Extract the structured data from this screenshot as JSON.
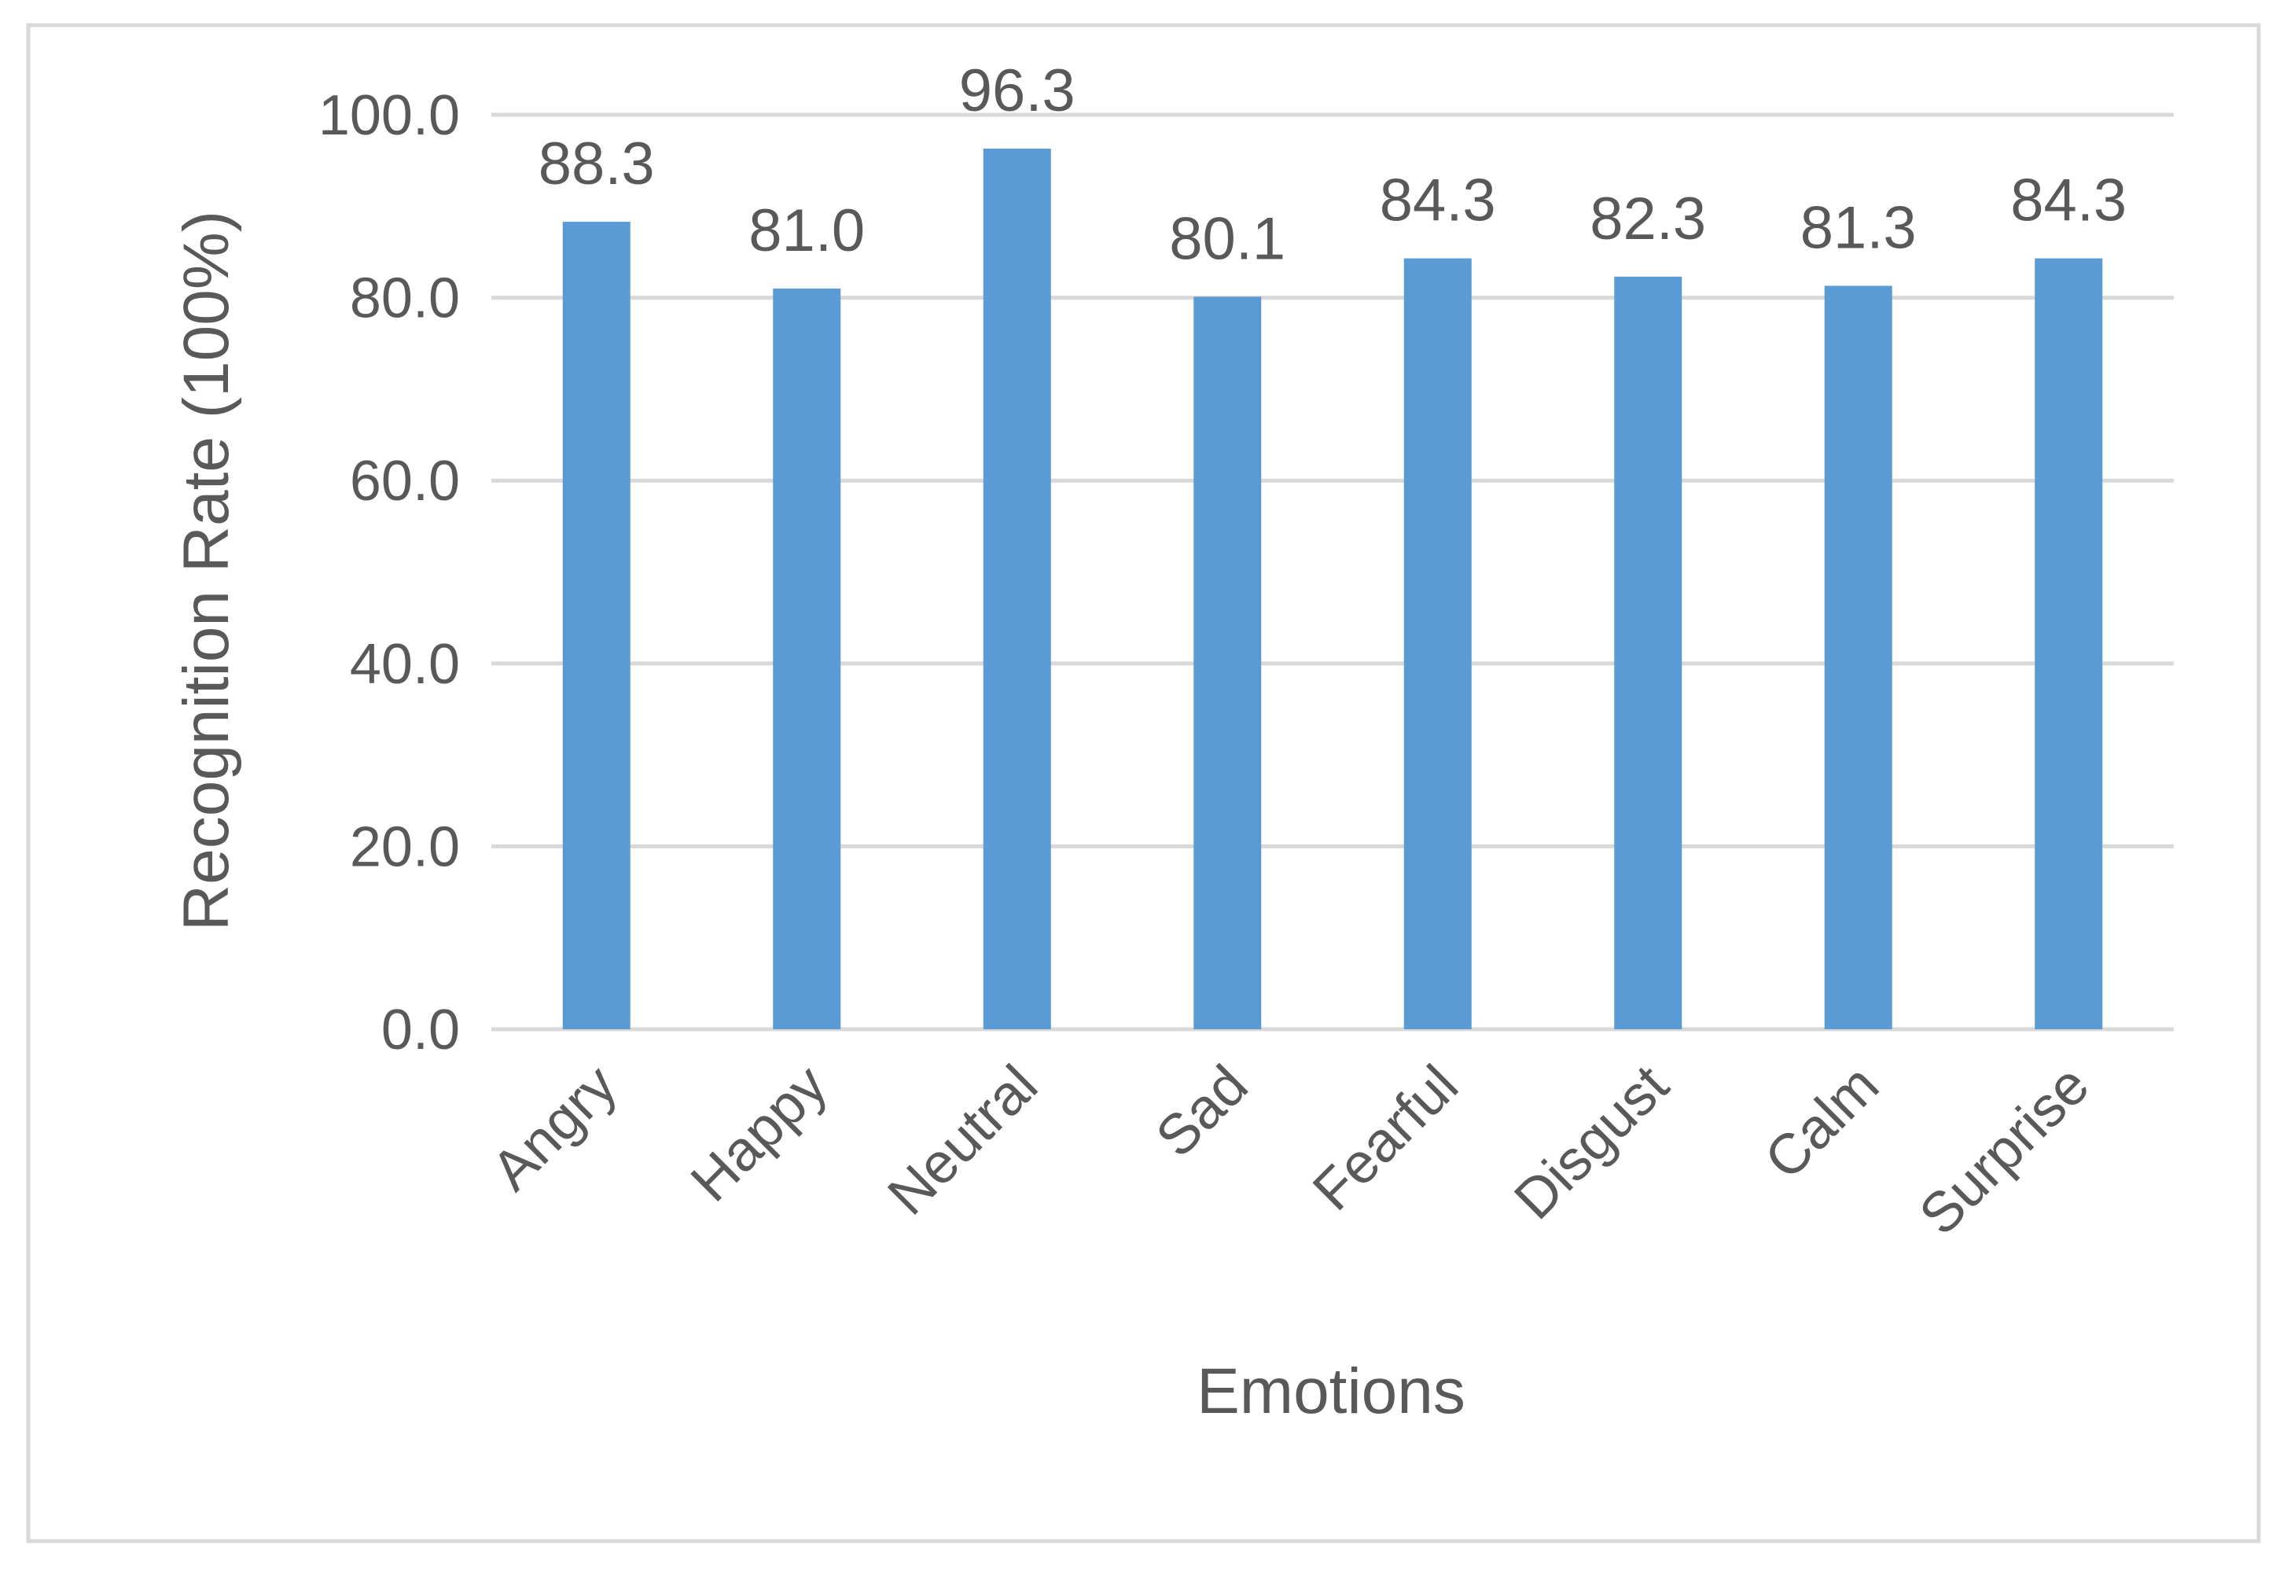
{
  "chart_data": {
    "type": "bar",
    "title": "",
    "xlabel": "Emotions",
    "ylabel": "Recognition Rate (100%)",
    "categories": [
      "Angry",
      "Happy",
      "Neutral",
      "Sad",
      "Fearful",
      "Disgust",
      "Calm",
      "Surprise"
    ],
    "values": [
      88.3,
      81.0,
      96.3,
      80.1,
      84.3,
      82.3,
      81.3,
      84.3
    ],
    "data_labels": [
      "88.3",
      "81.0",
      "96.3",
      "80.1",
      "84.3",
      "82.3",
      "81.3",
      "84.3"
    ],
    "ylim": [
      0,
      100
    ],
    "yticks": [
      0,
      20,
      40,
      60,
      80,
      100
    ],
    "ytick_labels": [
      "0.0",
      "20.0",
      "40.0",
      "60.0",
      "80.0",
      "100.0"
    ],
    "grid": "horizontal",
    "legend": "none",
    "colors": {
      "bar": "#5b9bd5",
      "grid": "#d9d9d9",
      "text": "#595959",
      "frame": "#d9d9d9"
    }
  }
}
